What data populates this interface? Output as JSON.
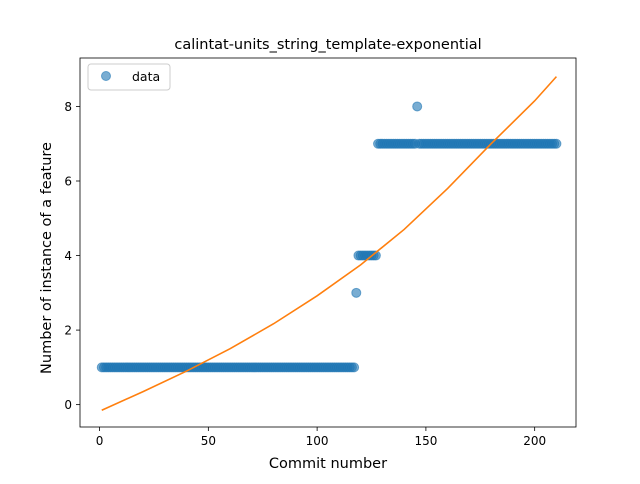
{
  "chart_data": {
    "type": "scatter",
    "title": "calintat-units_string_template-exponential",
    "xlabel": "Commit number",
    "ylabel": "Number of instance of a feature",
    "xlim": [
      -9,
      219
    ],
    "ylim": [
      -0.6,
      9.3
    ],
    "xticks": [
      0,
      50,
      100,
      150,
      200
    ],
    "yticks": [
      0,
      2,
      4,
      6,
      8
    ],
    "grid": false,
    "legend": {
      "placement": "upper-left",
      "entries": [
        "data"
      ]
    },
    "colors": {
      "data": "#1f77b4",
      "fit": "#ff7f0e"
    },
    "series": [
      {
        "name": "data",
        "kind": "markers",
        "segments": [
          {
            "x_from": 1,
            "x_to": 117,
            "y": 1
          },
          {
            "x_from": 119,
            "x_to": 127,
            "y": 4
          },
          {
            "x_from": 128,
            "x_to": 145,
            "y": 7
          },
          {
            "x_from": 147,
            "x_to": 210,
            "y": 7
          }
        ],
        "points": [
          {
            "x": 118,
            "y": 3
          },
          {
            "x": 146,
            "y": 8
          }
        ]
      },
      {
        "kind": "line",
        "points": [
          {
            "x": 1,
            "y": -0.15
          },
          {
            "x": 20,
            "y": 0.35
          },
          {
            "x": 40,
            "y": 0.9
          },
          {
            "x": 60,
            "y": 1.5
          },
          {
            "x": 80,
            "y": 2.17
          },
          {
            "x": 100,
            "y": 2.92
          },
          {
            "x": 120,
            "y": 3.75
          },
          {
            "x": 140,
            "y": 4.7
          },
          {
            "x": 160,
            "y": 5.8
          },
          {
            "x": 180,
            "y": 7.0
          },
          {
            "x": 200,
            "y": 8.15
          },
          {
            "x": 210,
            "y": 8.8
          }
        ]
      }
    ]
  }
}
